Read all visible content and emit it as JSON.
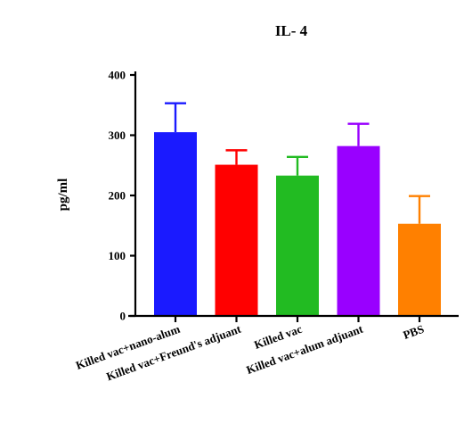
{
  "chart_data": {
    "type": "bar",
    "title": "IL- 4",
    "xlabel": "",
    "ylabel": "pg/ml",
    "ylim": [
      0,
      400
    ],
    "yticks": [
      0,
      100,
      200,
      300,
      400
    ],
    "categories": [
      "Killed vac+nano-alum",
      "Killed vac+Freund's adjuant",
      "Killed vac",
      "Killed vac+alum adjuant",
      "PBS"
    ],
    "values": [
      305,
      251,
      233,
      282,
      153
    ],
    "errors": [
      48,
      24,
      31,
      37,
      46
    ],
    "colors": [
      "#1a1aff",
      "#ff0000",
      "#22bb22",
      "#9900ff",
      "#ff8000"
    ],
    "grid": false,
    "legend": "none"
  }
}
